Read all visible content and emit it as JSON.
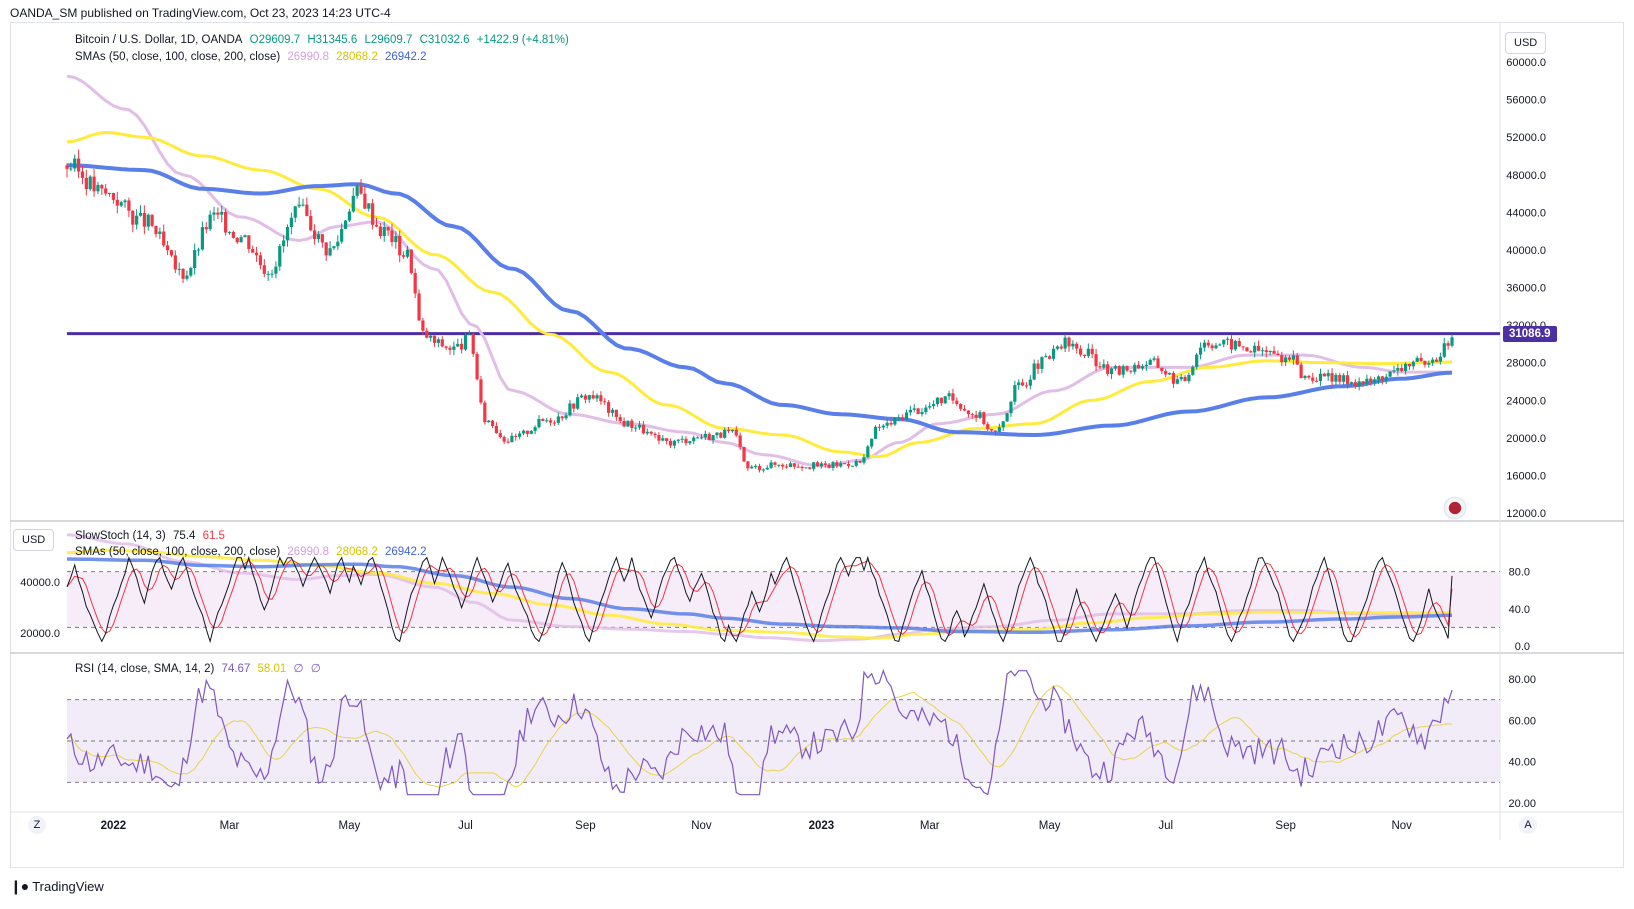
{
  "header": {
    "published": "OANDA_SM published on TradingView.com, Oct 23, 2023 14:23 UTC-4"
  },
  "legend_main": {
    "symbol": "Bitcoin / U.S. Dollar, 1D, OANDA",
    "o": "O29609.7",
    "h": "H31345.6",
    "l": "L29609.7",
    "c": "C31032.6",
    "chg": "+1422.9 (+4.81%)",
    "sma_label": "SMAs (50, close, 100, close, 200, close)",
    "sma50": "26990.8",
    "sma100": "28068.2",
    "sma200": "26942.2"
  },
  "legend_stoch": {
    "label": "SlowStoch (14, 3)",
    "k": "75.4",
    "d": "61.5",
    "sma_label": "SMAs (50, close, 100, close, 200, close)",
    "sma50": "26990.8",
    "sma100": "28068.2",
    "sma200": "26942.2"
  },
  "legend_rsi": {
    "label": "RSI (14, close, SMA, 14, 2)",
    "rsi": "74.67",
    "sma": "58.01",
    "e1": "∅",
    "e2": "∅"
  },
  "currency_btn": "USD",
  "currency_btn_left": "USD",
  "price_tag": "31086.9",
  "footer": {
    "brand": "TradingView"
  },
  "corner_left": "Z",
  "corner_right": "A",
  "colors": {
    "up": "#089981",
    "down": "#f23645",
    "sma50": "#e1bee7",
    "sma100": "#ffeb3b",
    "sma200": "#5b7fe8",
    "level": "#4b2fa3",
    "rsi": "#7e57c2"
  },
  "chart_data": {
    "type": "candlestick",
    "x_ticks": [
      "2022",
      "Mar",
      "May",
      "Jul",
      "Sep",
      "Nov",
      "2023",
      "Mar",
      "May",
      "Jul",
      "Sep",
      "Nov"
    ],
    "price_axis": {
      "ticks": [
        60000,
        56000,
        52000,
        48000,
        44000,
        40000,
        36000,
        32000,
        28000,
        24000,
        20000,
        16000,
        12000
      ],
      "tick_labels": [
        "60000.0",
        "56000.0",
        "52000.0",
        "48000.0",
        "44000.0",
        "40000.0",
        "36000.0",
        "32000.0",
        "28000.0",
        "24000.0",
        "20000.0",
        "16000.0",
        "12000.0"
      ],
      "range": [
        11500,
        61500
      ]
    },
    "level": 31086.9,
    "price_path": [
      [
        0,
        49000
      ],
      [
        10,
        46000
      ],
      [
        20,
        43000
      ],
      [
        30,
        37500
      ],
      [
        38,
        43500
      ],
      [
        45,
        41500
      ],
      [
        52,
        38000
      ],
      [
        60,
        44000
      ],
      [
        68,
        40000
      ],
      [
        75,
        46000
      ],
      [
        82,
        42000
      ],
      [
        88,
        39500
      ],
      [
        92,
        31000
      ],
      [
        96,
        30000
      ],
      [
        100,
        29500
      ],
      [
        104,
        30500
      ],
      [
        108,
        22000
      ],
      [
        114,
        19800
      ],
      [
        125,
        22000
      ],
      [
        135,
        24500
      ],
      [
        145,
        21500
      ],
      [
        155,
        19500
      ],
      [
        165,
        20200
      ],
      [
        172,
        20500
      ],
      [
        176,
        16800
      ],
      [
        185,
        17200
      ],
      [
        195,
        17000
      ],
      [
        205,
        17400
      ],
      [
        210,
        21200
      ],
      [
        220,
        23000
      ],
      [
        228,
        24200
      ],
      [
        235,
        22500
      ],
      [
        240,
        20500
      ],
      [
        246,
        25500
      ],
      [
        252,
        28000
      ],
      [
        258,
        30000
      ],
      [
        263,
        29000
      ],
      [
        270,
        27000
      ],
      [
        280,
        28000
      ],
      [
        288,
        26000
      ],
      [
        294,
        30200
      ],
      [
        300,
        30000
      ],
      [
        308,
        29300
      ],
      [
        316,
        28500
      ],
      [
        320,
        26500
      ],
      [
        330,
        26200
      ],
      [
        336,
        25900
      ],
      [
        342,
        26800
      ],
      [
        348,
        28100
      ],
      [
        352,
        27400
      ],
      [
        356,
        29600
      ],
      [
        358,
        31000
      ]
    ],
    "sma50": [
      [
        0,
        58500
      ],
      [
        15,
        55000
      ],
      [
        30,
        48000
      ],
      [
        45,
        43500
      ],
      [
        60,
        41000
      ],
      [
        70,
        42500
      ],
      [
        80,
        43000
      ],
      [
        95,
        38000
      ],
      [
        105,
        32000
      ],
      [
        115,
        25000
      ],
      [
        130,
        22500
      ],
      [
        145,
        21500
      ],
      [
        160,
        20600
      ],
      [
        170,
        19500
      ],
      [
        180,
        18200
      ],
      [
        195,
        17000
      ],
      [
        205,
        17600
      ],
      [
        215,
        19500
      ],
      [
        225,
        21500
      ],
      [
        240,
        22500
      ],
      [
        255,
        25000
      ],
      [
        270,
        27500
      ],
      [
        290,
        27500
      ],
      [
        305,
        28800
      ],
      [
        320,
        28800
      ],
      [
        335,
        27500
      ],
      [
        345,
        27000
      ],
      [
        358,
        26990
      ]
    ],
    "sma100": [
      [
        0,
        51500
      ],
      [
        10,
        52500
      ],
      [
        20,
        52000
      ],
      [
        35,
        50000
      ],
      [
        50,
        48500
      ],
      [
        65,
        46500
      ],
      [
        80,
        43500
      ],
      [
        95,
        39500
      ],
      [
        110,
        35500
      ],
      [
        125,
        31000
      ],
      [
        140,
        27000
      ],
      [
        155,
        23500
      ],
      [
        170,
        21000
      ],
      [
        185,
        20300
      ],
      [
        200,
        18500
      ],
      [
        210,
        18000
      ],
      [
        220,
        19500
      ],
      [
        235,
        21000
      ],
      [
        250,
        21500
      ],
      [
        265,
        24000
      ],
      [
        280,
        26000
      ],
      [
        295,
        27500
      ],
      [
        310,
        28200
      ],
      [
        325,
        28000
      ],
      [
        340,
        27900
      ],
      [
        358,
        28068
      ]
    ],
    "sma200": [
      [
        0,
        49000
      ],
      [
        20,
        48500
      ],
      [
        35,
        46500
      ],
      [
        50,
        46000
      ],
      [
        65,
        46800
      ],
      [
        75,
        47000
      ],
      [
        85,
        46000
      ],
      [
        100,
        42500
      ],
      [
        115,
        38000
      ],
      [
        130,
        33500
      ],
      [
        145,
        29500
      ],
      [
        160,
        27500
      ],
      [
        170,
        25800
      ],
      [
        185,
        23500
      ],
      [
        200,
        22500
      ],
      [
        215,
        22000
      ],
      [
        230,
        20600
      ],
      [
        250,
        20300
      ],
      [
        270,
        21300
      ],
      [
        290,
        22800
      ],
      [
        310,
        24300
      ],
      [
        330,
        25500
      ],
      [
        345,
        26300
      ],
      [
        358,
        26942
      ]
    ],
    "stoch_axis": {
      "ticks": [
        80,
        40,
        0
      ],
      "tick_labels": [
        "80.0",
        "40.0",
        "0.0"
      ],
      "bands": [
        20,
        80
      ]
    },
    "stoch_price_axis": {
      "ticks": [
        40000,
        20000
      ],
      "tick_labels": [
        "40000.0",
        "20000.0"
      ]
    },
    "stoch_k_seed": 7,
    "rsi_axis": {
      "ticks": [
        80,
        60,
        40,
        20
      ],
      "tick_labels": [
        "80.00",
        "60.00",
        "40.00",
        "20.00"
      ],
      "bands": [
        30,
        50,
        70
      ]
    },
    "rsi_seed": 11
  }
}
